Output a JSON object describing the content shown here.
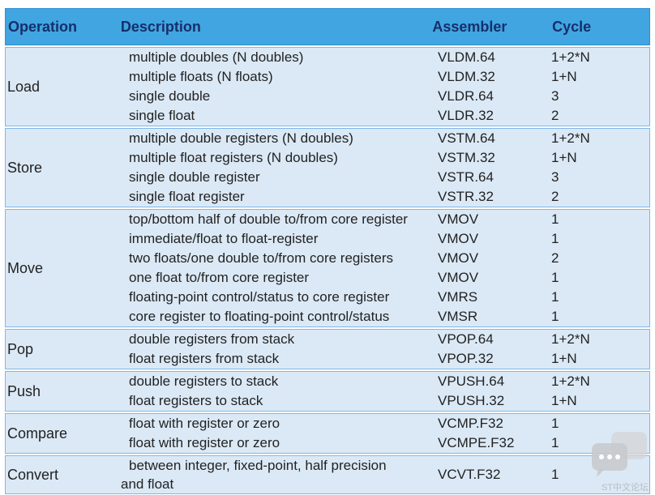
{
  "header": {
    "operation": "Operation",
    "description": "Description",
    "assembler": "Assembler",
    "cycle": "Cycle"
  },
  "groups": [
    {
      "operation": "Load",
      "rows": [
        {
          "description": "multiple doubles (N doubles)",
          "assembler": "VLDM.64",
          "cycle": "1+2*N"
        },
        {
          "description": "multiple floats (N floats)",
          "assembler": "VLDM.32",
          "cycle": "1+N"
        },
        {
          "description": "single double",
          "assembler": "VLDR.64",
          "cycle": "3"
        },
        {
          "description": "single float",
          "assembler": "VLDR.32",
          "cycle": "2"
        }
      ]
    },
    {
      "operation": "Store",
      "rows": [
        {
          "description": "multiple double registers (N doubles)",
          "assembler": "VSTM.64",
          "cycle": "1+2*N"
        },
        {
          "description": "multiple float registers (N doubles)",
          "assembler": "VSTM.32",
          "cycle": "1+N"
        },
        {
          "description": "single double register",
          "assembler": "VSTR.64",
          "cycle": "3"
        },
        {
          "description": "single float register",
          "assembler": "VSTR.32",
          "cycle": "2"
        }
      ]
    },
    {
      "operation": "Move",
      "rows": [
        {
          "description": "top/bottom half of double to/from core register",
          "assembler": "VMOV",
          "cycle": "1"
        },
        {
          "description": "immediate/float to float-register",
          "assembler": "VMOV",
          "cycle": "1"
        },
        {
          "description": "two floats/one double to/from core registers",
          "assembler": "VMOV",
          "cycle": "2"
        },
        {
          "description": "one float to/from core register",
          "assembler": "VMOV",
          "cycle": "1"
        },
        {
          "description": "floating-point control/status to core register",
          "assembler": "VMRS",
          "cycle": "1"
        },
        {
          "description": "core register to floating-point control/status",
          "assembler": "VMSR",
          "cycle": "1"
        }
      ]
    },
    {
      "operation": "Pop",
      "rows": [
        {
          "description": "double registers from stack",
          "assembler": "VPOP.64",
          "cycle": "1+2*N"
        },
        {
          "description": "float registers from stack",
          "assembler": "VPOP.32",
          "cycle": "1+N"
        }
      ]
    },
    {
      "operation": "Push",
      "rows": [
        {
          "description": "double registers to stack",
          "assembler": "VPUSH.64",
          "cycle": "1+2*N"
        },
        {
          "description": "float registers to stack",
          "assembler": "VPUSH.32",
          "cycle": "1+N"
        }
      ]
    },
    {
      "operation": "Compare",
      "rows": [
        {
          "description": "float with register or zero",
          "assembler": "VCMP.F32",
          "cycle": "1"
        },
        {
          "description": "float with register or zero",
          "assembler": "VCMPE.F32",
          "cycle": "1"
        }
      ]
    },
    {
      "operation": "Convert",
      "rows": [
        {
          "description_line1": "between integer, fixed-point, half precision",
          "description_line2": "and float",
          "assembler": "VCVT.F32",
          "cycle": "1"
        }
      ]
    }
  ],
  "watermark": {
    "text": "ST中文论坛",
    "icon": "chat-bubble-icon"
  }
}
